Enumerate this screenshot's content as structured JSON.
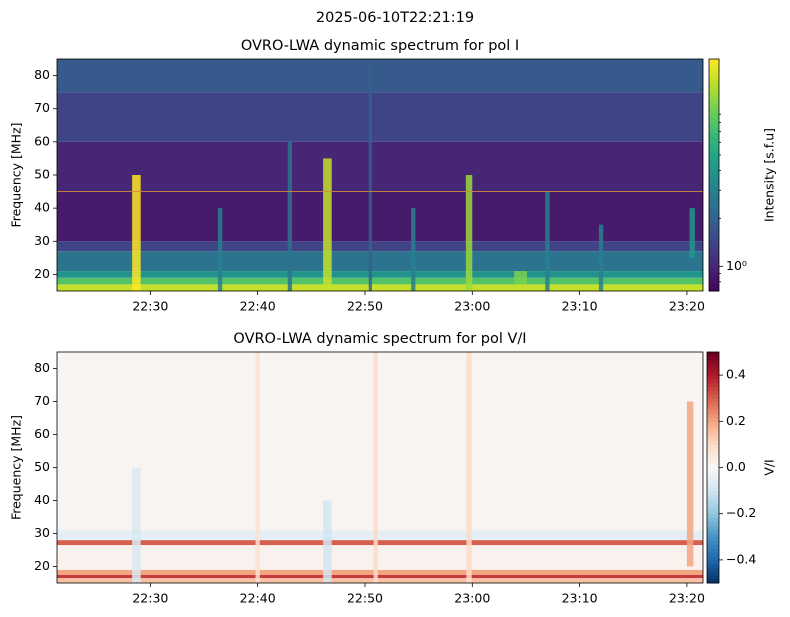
{
  "suptitle": "2025-06-10T22:21:19",
  "chart_data": [
    {
      "type": "heatmap",
      "title": "OVRO-LWA dynamic spectrum for pol I",
      "ylabel": "Frequency [MHz]",
      "colorbar_label": "Intensity [s.f.u]",
      "colormap": "viridis",
      "color_scale": "log",
      "clim": [
        0.7,
        20
      ],
      "cticks": [
        {
          "value": 1,
          "label": "10⁰"
        }
      ],
      "cminorticks": [
        0.8,
        0.9,
        2,
        3,
        4,
        5,
        6,
        7,
        8,
        9
      ],
      "xlim": [
        21.3,
        81.5
      ],
      "xticks": [
        {
          "value": 30,
          "label": "22:30"
        },
        {
          "value": 40,
          "label": "22:40"
        },
        {
          "value": 50,
          "label": "22:50"
        },
        {
          "value": 60,
          "label": "23:00"
        },
        {
          "value": 70,
          "label": "23:10"
        },
        {
          "value": 80,
          "label": "23:20"
        }
      ],
      "ylim": [
        15,
        85
      ],
      "yticks": [
        20,
        30,
        40,
        50,
        60,
        70,
        80
      ],
      "bands": {
        "edges": [
          15,
          17,
          19,
          21,
          27,
          30,
          45,
          60,
          75,
          85
        ],
        "values": [
          15,
          8,
          4,
          2.5,
          1.4,
          0.9,
          1.0,
          1.4,
          1.8
        ]
      },
      "bursts": [
        {
          "time": 28.7,
          "duration": 0.8,
          "fmin": 15,
          "fmax": 50,
          "value": 20
        },
        {
          "time": 46.5,
          "duration": 0.8,
          "fmin": 15,
          "fmax": 55,
          "value": 15
        },
        {
          "time": 59.7,
          "duration": 0.6,
          "fmin": 15,
          "fmax": 50,
          "value": 12
        },
        {
          "time": 54.5,
          "duration": 0.4,
          "fmin": 15,
          "fmax": 40,
          "value": 3
        },
        {
          "time": 36.5,
          "duration": 0.4,
          "fmin": 15,
          "fmax": 40,
          "value": 3
        },
        {
          "time": 43,
          "duration": 0.4,
          "fmin": 15,
          "fmax": 60,
          "value": 2.5
        },
        {
          "time": 50.5,
          "duration": 0.3,
          "fmin": 15,
          "fmax": 85,
          "value": 2
        },
        {
          "time": 67,
          "duration": 0.4,
          "fmin": 15,
          "fmax": 45,
          "value": 3
        },
        {
          "time": 72,
          "duration": 0.4,
          "fmin": 15,
          "fmax": 35,
          "value": 3
        },
        {
          "time": 80.5,
          "duration": 0.5,
          "fmin": 25,
          "fmax": 40,
          "value": 4
        },
        {
          "time": 64.5,
          "duration": 1.2,
          "fmin": 17,
          "fmax": 21,
          "value": 10
        }
      ],
      "hline": {
        "value": 45,
        "color": "#d08a3c"
      }
    },
    {
      "type": "heatmap",
      "title": "OVRO-LWA dynamic spectrum for pol V/I",
      "ylabel": "Frequency [MHz]",
      "colorbar_label": "V/I",
      "colormap": "RdBu_r",
      "color_scale": "linear",
      "clim": [
        -0.5,
        0.5
      ],
      "cticks": [
        {
          "value": -0.4,
          "label": "−0.4"
        },
        {
          "value": -0.2,
          "label": "−0.2"
        },
        {
          "value": 0,
          "label": "0.0"
        },
        {
          "value": 0.2,
          "label": "0.2"
        },
        {
          "value": 0.4,
          "label": "0.4"
        }
      ],
      "xlim": [
        21.3,
        81.5
      ],
      "xticks": [
        {
          "value": 30,
          "label": "22:30"
        },
        {
          "value": 40,
          "label": "22:40"
        },
        {
          "value": 50,
          "label": "22:50"
        },
        {
          "value": 60,
          "label": "23:00"
        },
        {
          "value": 70,
          "label": "23:10"
        },
        {
          "value": 80,
          "label": "23:20"
        }
      ],
      "ylim": [
        15,
        85
      ],
      "yticks": [
        20,
        30,
        40,
        50,
        60,
        70,
        80
      ],
      "bands": {
        "edges": [
          15,
          16.5,
          17.5,
          19,
          26.5,
          28,
          31,
          85
        ],
        "values": [
          0.15,
          0.35,
          0.2,
          0.02,
          0.3,
          -0.05,
          0.01
        ]
      },
      "bursts": [
        {
          "time": 28.7,
          "duration": 0.8,
          "fmin": 15,
          "fmax": 50,
          "value": -0.08
        },
        {
          "time": 46.5,
          "duration": 0.8,
          "fmin": 15,
          "fmax": 40,
          "value": -0.1
        },
        {
          "time": 59.7,
          "duration": 0.5,
          "fmin": 15,
          "fmax": 85,
          "value": 0.1
        },
        {
          "time": 40,
          "duration": 0.4,
          "fmin": 15,
          "fmax": 85,
          "value": 0.08
        },
        {
          "time": 51,
          "duration": 0.4,
          "fmin": 15,
          "fmax": 85,
          "value": 0.1
        },
        {
          "time": 80.3,
          "duration": 0.6,
          "fmin": 20,
          "fmax": 70,
          "value": 0.2
        }
      ]
    }
  ]
}
